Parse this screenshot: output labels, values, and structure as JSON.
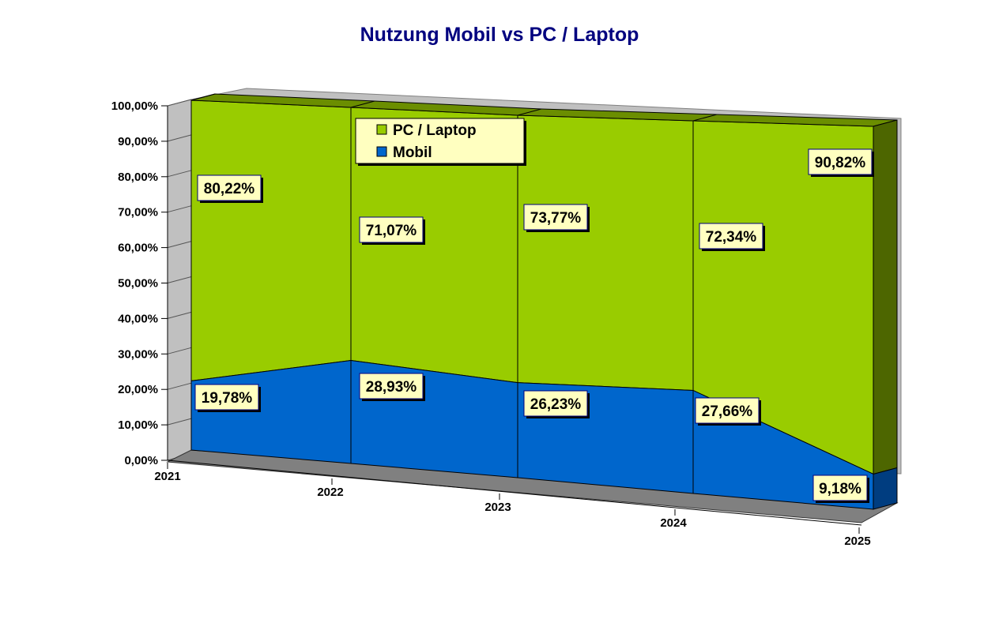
{
  "chart_data": {
    "type": "area",
    "subtype": "3d-stacked",
    "title": "Nutzung Mobil vs PC / Laptop",
    "categories": [
      "2021",
      "2022",
      "2023",
      "2024",
      "2025"
    ],
    "series": [
      {
        "name": "Mobil",
        "values": [
          19.78,
          28.93,
          26.23,
          27.66,
          9.18
        ],
        "labels": [
          "19,78%",
          "28,93%",
          "26,23%",
          "27,66%",
          "9,18%"
        ],
        "color": "#0066cc"
      },
      {
        "name": "PC / Laptop",
        "values": [
          80.22,
          71.07,
          73.77,
          72.34,
          90.82
        ],
        "labels": [
          "80,22%",
          "71,07%",
          "73,77%",
          "72,34%",
          "90,82%"
        ],
        "color": "#99cc00"
      }
    ],
    "yticks": [
      "0,00%",
      "10,00%",
      "20,00%",
      "30,00%",
      "40,00%",
      "50,00%",
      "60,00%",
      "70,00%",
      "80,00%",
      "90,00%",
      "100,00%"
    ],
    "ylim": [
      0,
      100
    ],
    "legend": {
      "position": "top-center",
      "entries": [
        "PC / Laptop",
        "Mobil"
      ]
    }
  }
}
